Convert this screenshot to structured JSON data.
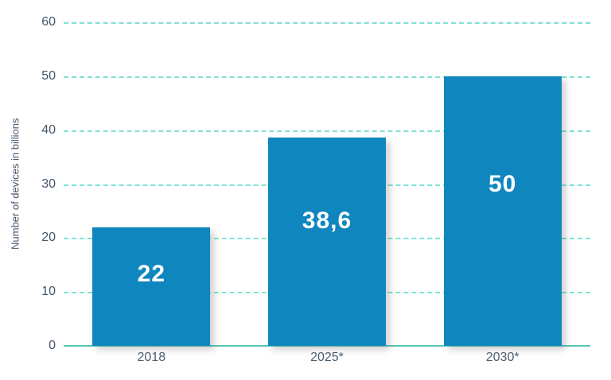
{
  "chart_data": {
    "type": "bar",
    "title": "",
    "categories": [
      "2018",
      "2025*",
      "2030*"
    ],
    "values": [
      22,
      38.6,
      50
    ],
    "value_labels": [
      "22",
      "38,6",
      "50"
    ],
    "xlabel": "",
    "ylabel": "Number of devices in billions",
    "ylim": [
      0,
      60
    ],
    "yticks": [
      0,
      10,
      20,
      30,
      40,
      50,
      60
    ],
    "grid": "horizontal-dashed",
    "legend": "none",
    "colors": {
      "bar": "#1086bf",
      "value_label": "#ffffff",
      "gridline": "#7fe3d3",
      "baseline": "#52c5b7",
      "tick_label": "#44566b",
      "axis_title": "#44566b"
    }
  }
}
